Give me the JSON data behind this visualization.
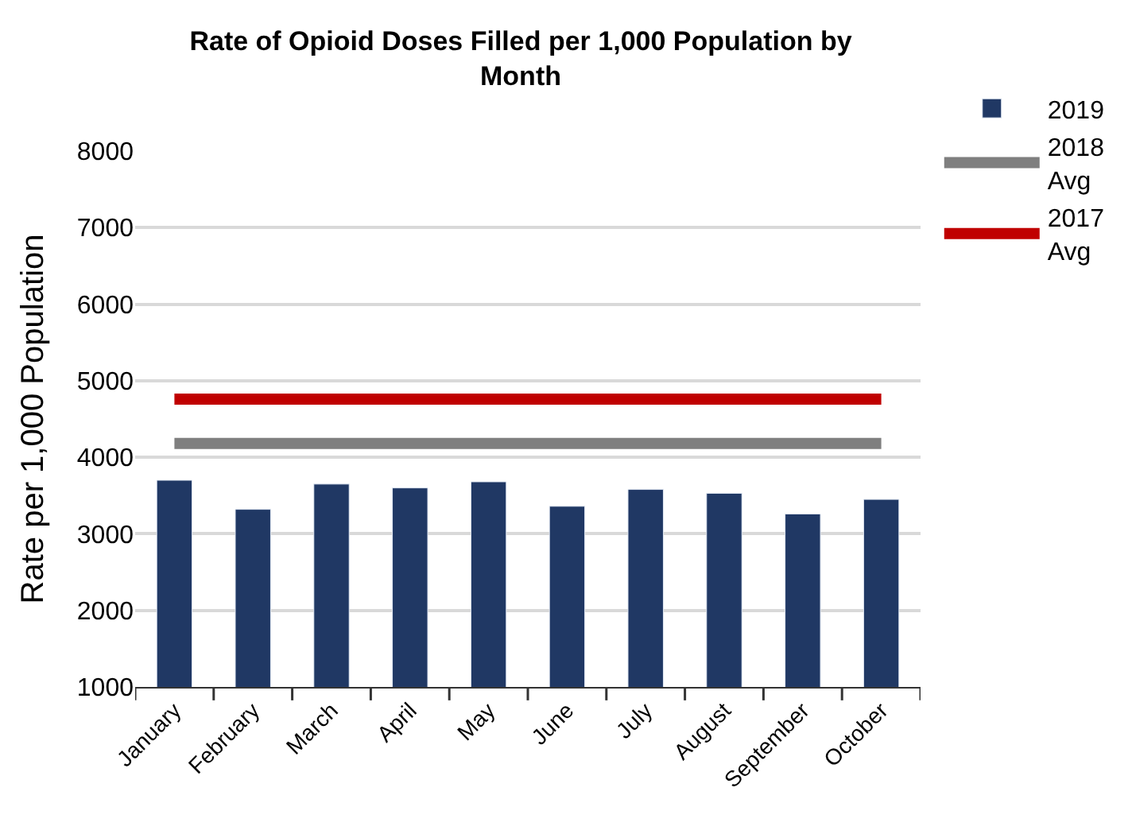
{
  "chart_data": {
    "type": "bar",
    "title": "Rate of Opioid Doses Filled per 1,000 Population by Month",
    "ylabel": "Rate per 1,000 Population",
    "categories": [
      "January",
      "February",
      "March",
      "April",
      "May",
      "June",
      "July",
      "August",
      "September",
      "October"
    ],
    "series": [
      {
        "name": "2019",
        "color": "#203864",
        "values": [
          3700,
          3320,
          3650,
          3600,
          3680,
          3360,
          3580,
          3530,
          3260,
          3450
        ]
      },
      {
        "name": "2018 Avg",
        "type": "line",
        "color": "#7f7f7f",
        "values": [
          4180,
          4180,
          4180,
          4180,
          4180,
          4180,
          4180,
          4180,
          4180,
          4180
        ]
      },
      {
        "name": "2017 Avg",
        "type": "line",
        "color": "#c00000",
        "values": [
          4760,
          4760,
          4760,
          4760,
          4760,
          4760,
          4760,
          4760,
          4760,
          4760
        ]
      }
    ],
    "ylim": [
      1000,
      8000
    ],
    "yticks": [
      1000,
      2000,
      3000,
      4000,
      5000,
      6000,
      7000,
      8000
    ],
    "grid": "y",
    "legend": "right",
    "marker": "none"
  }
}
